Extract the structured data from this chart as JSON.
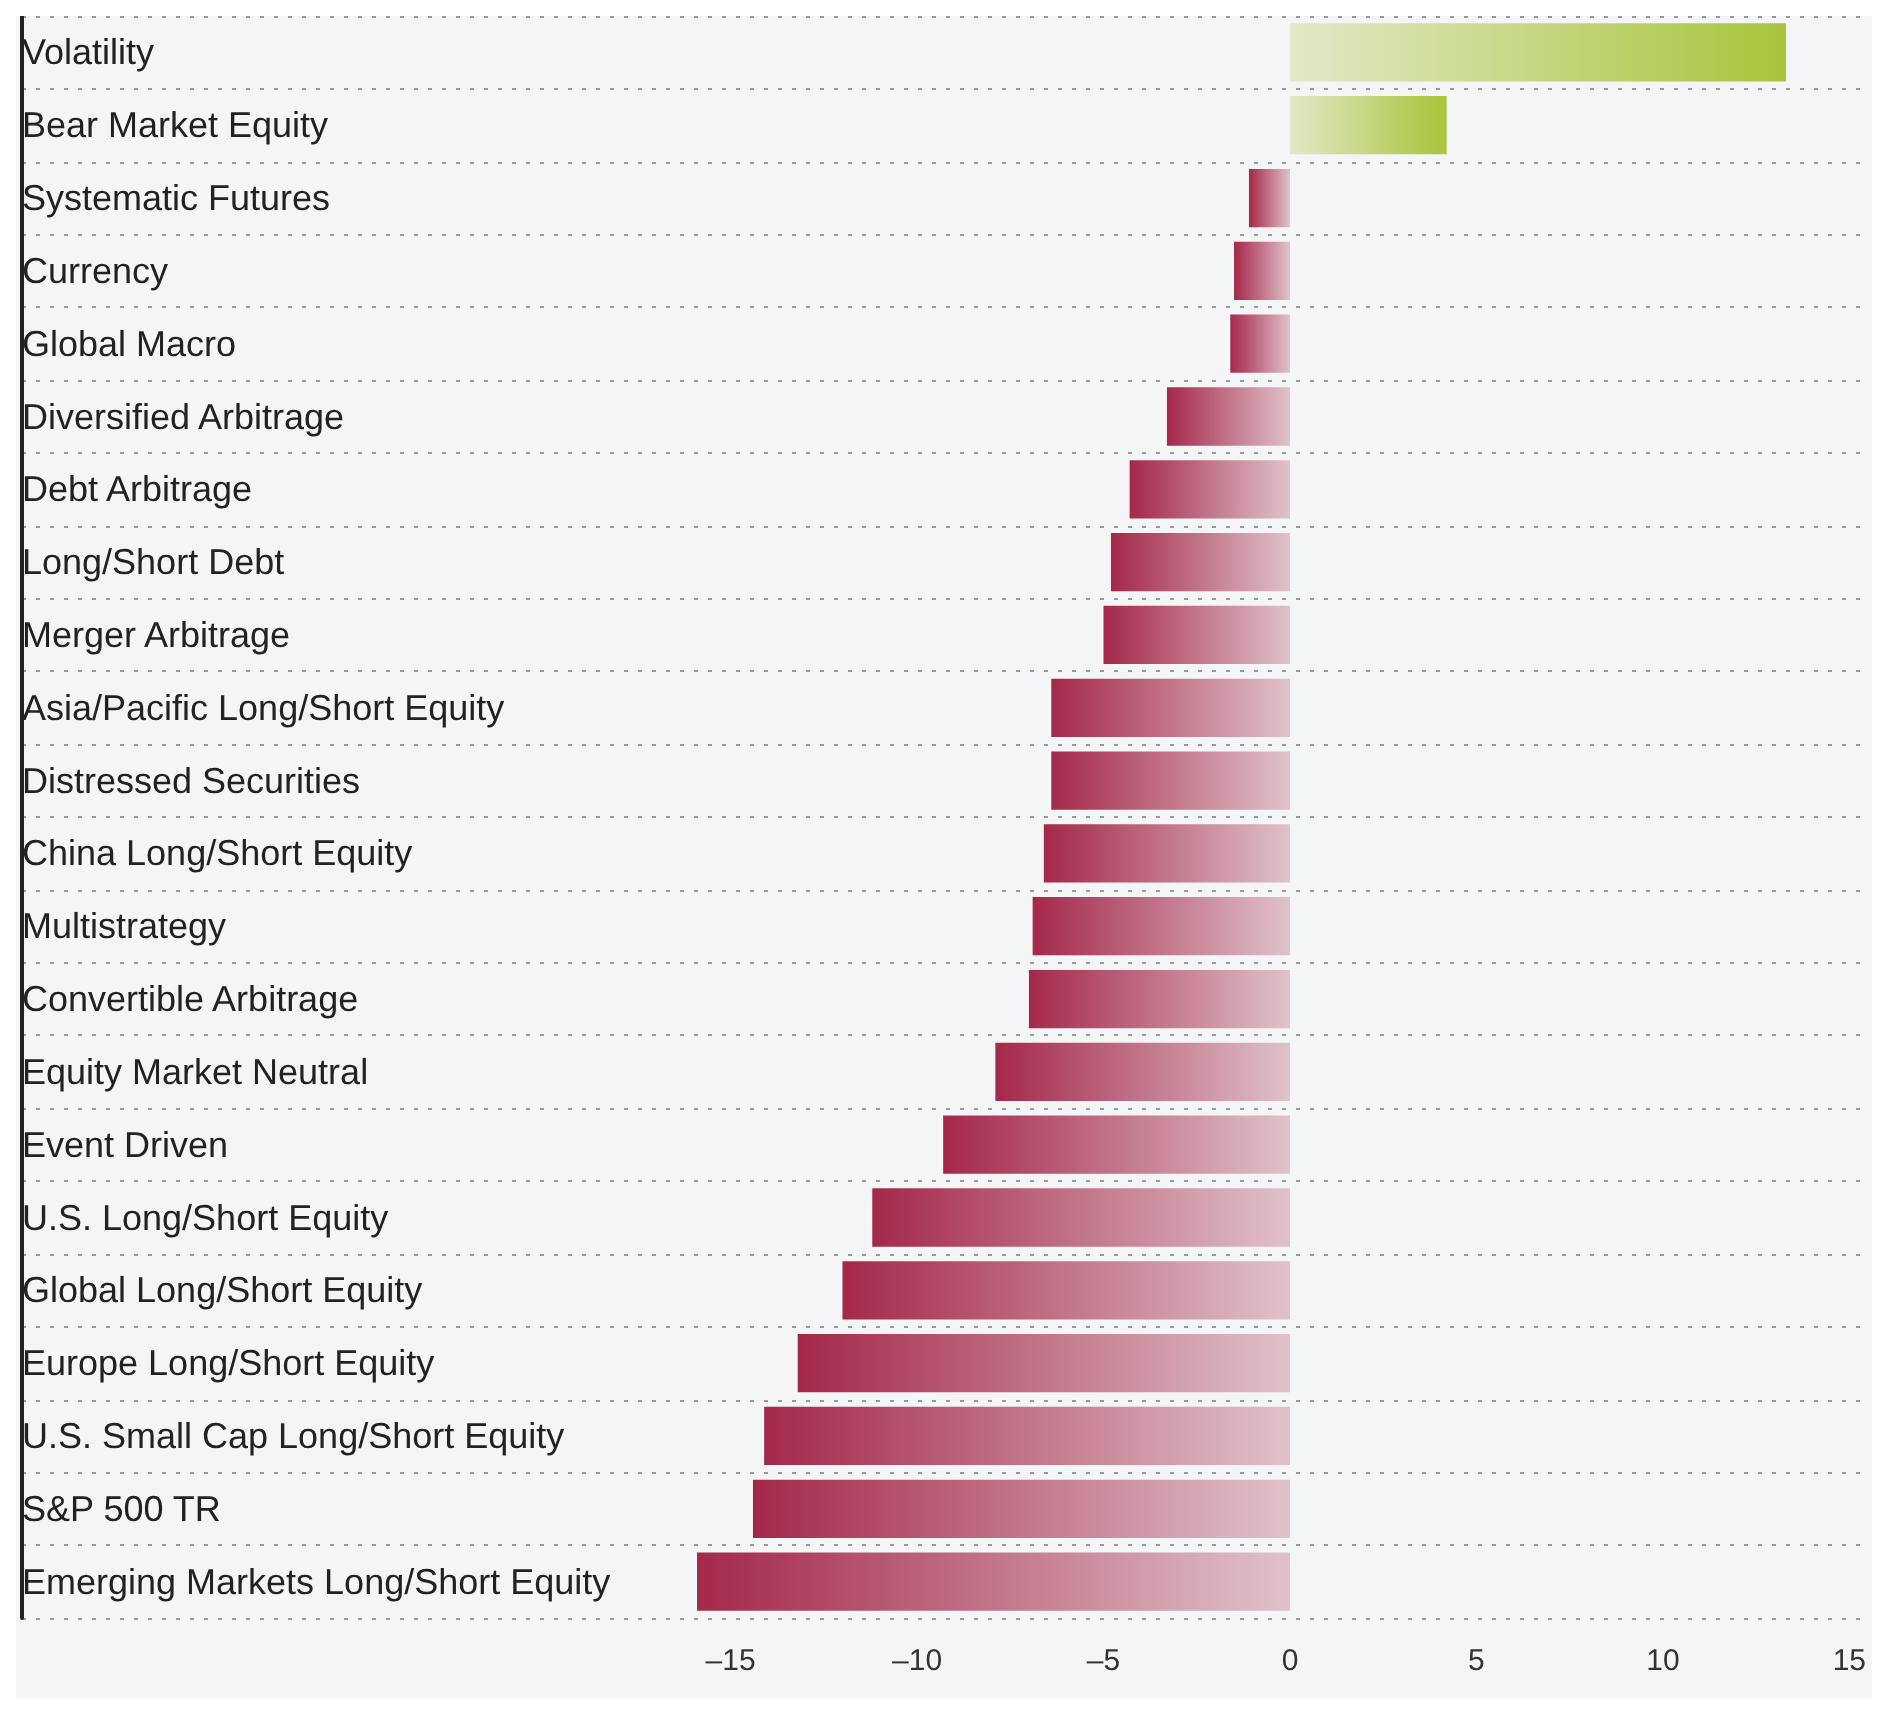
{
  "chart_data": {
    "type": "bar",
    "orientation": "horizontal",
    "categories": [
      "Volatility",
      "Bear Market Equity",
      "Systematic Futures",
      "Currency",
      "Global Macro",
      "Diversified Arbitrage",
      "Debt Arbitrage",
      "Long/Short Debt",
      "Merger Arbitrage",
      "Asia/Pacific Long/Short Equity",
      "Distressed Securities",
      "China Long/Short Equity",
      "Multistrategy",
      "Convertible Arbitrage",
      "Equity Market Neutral",
      "Event Driven",
      "U.S. Long/Short Equity",
      "Global Long/Short Equity",
      "Europe Long/Short Equity",
      "U.S. Small Cap Long/Short Equity",
      "S&P 500 TR",
      "Emerging Markets Long/Short Equity"
    ],
    "values": [
      13.3,
      4.2,
      -1.1,
      -1.5,
      -1.6,
      -3.3,
      -4.3,
      -4.8,
      -5.0,
      -6.4,
      -6.4,
      -6.6,
      -6.9,
      -7.0,
      -7.9,
      -9.3,
      -11.2,
      -12.0,
      -13.2,
      -14.1,
      -14.4,
      -15.9
    ],
    "colors": [
      "#a8c43a",
      "#a8c43a",
      "#a4284a",
      "#a4284a",
      "#a4284a",
      "#a4284a",
      "#a4284a",
      "#a4284a",
      "#a4284a",
      "#a4284a",
      "#a4284a",
      "#a4284a",
      "#a4284a",
      "#a4284a",
      "#a4284a",
      "#a4284a",
      "#a4284a",
      "#a4284a",
      "#a4284a",
      "#a4284a",
      "#a4284a",
      "#a4284a"
    ],
    "xlim": [
      -34,
      15.5
    ],
    "xticks": [
      {
        "value": -15,
        "label": "–15"
      },
      {
        "value": -10,
        "label": "–10"
      },
      {
        "value": -5,
        "label": "–5"
      },
      0,
      5,
      10,
      15
    ],
    "grid": "y"
  }
}
